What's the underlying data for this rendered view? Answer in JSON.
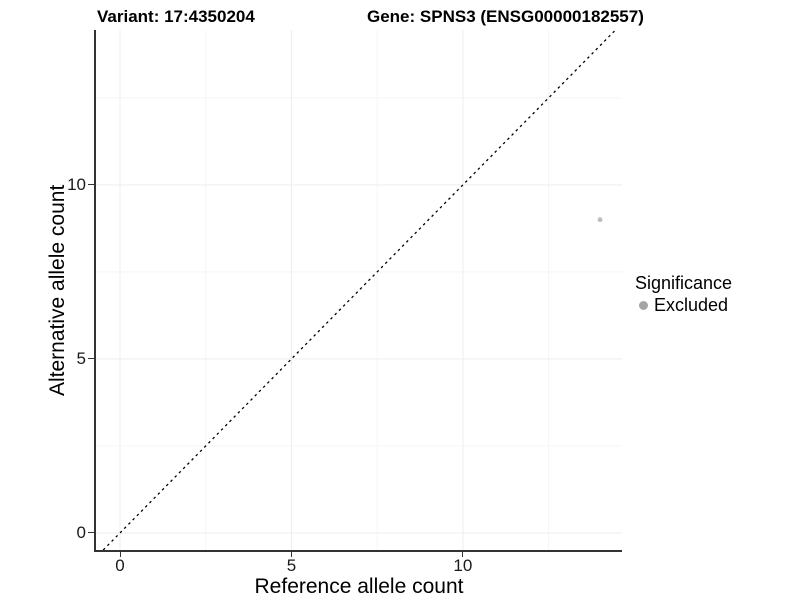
{
  "chart_data": {
    "type": "scatter",
    "titles": {
      "variant": "Variant: 17:4350204",
      "gene": "Gene: SPNS3 (ENSG00000182557)"
    },
    "xlabel": "Reference allele count",
    "ylabel": "Alternative allele count",
    "xlim": [
      -0.7,
      14.64
    ],
    "ylim": [
      -0.49,
      14.45
    ],
    "x_major_ticks": [
      0,
      5,
      10
    ],
    "x_minor_ticks": [
      2.5,
      7.5,
      12.5
    ],
    "y_major_ticks": [
      0,
      5,
      10
    ],
    "y_minor_ticks": [
      2.5,
      7.5,
      12.5
    ],
    "grid": {
      "visible": true,
      "major_color": "#ededed",
      "minor_color": "#f5f5f5"
    },
    "identity_line": {
      "slope": 1,
      "intercept": 0,
      "style": "dashed",
      "color": "#000000",
      "dash": "2.5,3.5",
      "width": 1.3
    },
    "points": [
      {
        "x": 14,
        "y": 9,
        "significance": "Excluded",
        "color": "#bdbdbd",
        "radius": 2.4
      }
    ],
    "legend": {
      "title": "Significance",
      "position": "right",
      "items": [
        {
          "label": "Excluded",
          "color": "#a5a5a5"
        }
      ]
    },
    "axis": {
      "line_color": "#333333",
      "tick_color": "#333333",
      "tick_label_color": "#1a1a1a"
    },
    "background": "#ffffff"
  }
}
